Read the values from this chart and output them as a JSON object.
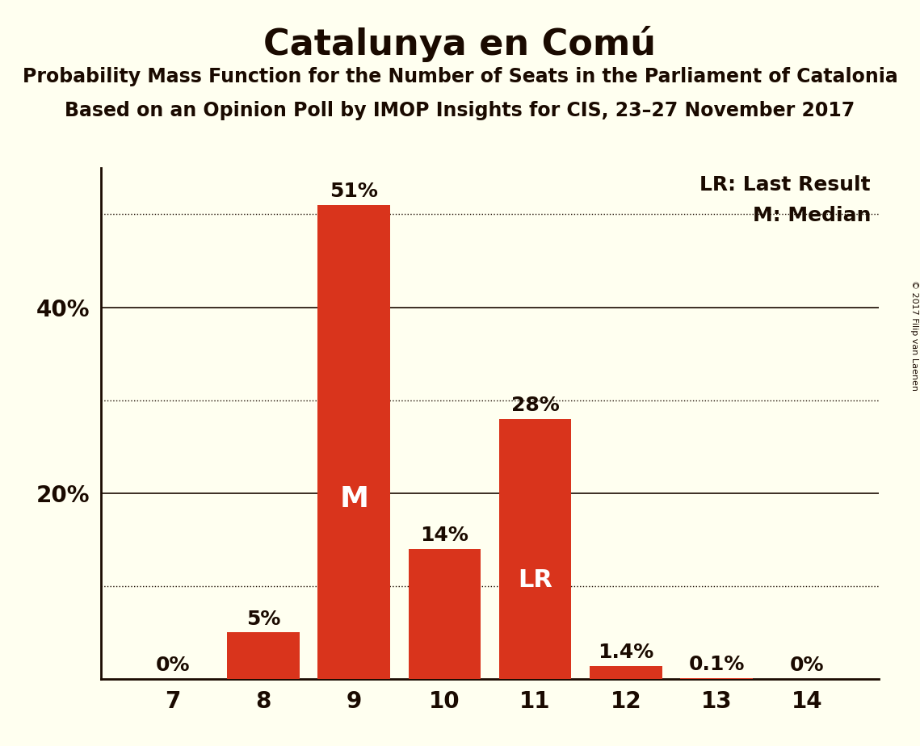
{
  "title": "Catalunya en Comú",
  "subtitle1": "Probability Mass Function for the Number of Seats in the Parliament of Catalonia",
  "subtitle2": "Based on an Opinion Poll by IMOP Insights for CIS, 23–27 November 2017",
  "copyright": "© 2017 Filip van Laenen",
  "seats": [
    7,
    8,
    9,
    10,
    11,
    12,
    13,
    14
  ],
  "probabilities": [
    0.0,
    5.0,
    51.0,
    14.0,
    28.0,
    1.4,
    0.1,
    0.0
  ],
  "bar_color": "#d9341c",
  "background_color": "#fffff0",
  "text_color": "#1a0a00",
  "median_seat": 9,
  "last_result_seat": 11,
  "ylim": [
    0,
    55
  ],
  "yticks_labeled": [
    20,
    40
  ],
  "ytick_labels": [
    "20%",
    "40%"
  ],
  "dotted_yticks": [
    10,
    30,
    50
  ],
  "solid_yticks": [
    20,
    40
  ],
  "legend_lr": "LR: Last Result",
  "legend_m": "M: Median",
  "bar_label_fontsize": 18,
  "title_fontsize": 32,
  "subtitle_fontsize": 17,
  "axis_fontsize": 20,
  "legend_fontsize": 18,
  "copyright_fontsize": 8,
  "median_label_fontsize": 26,
  "lr_label_fontsize": 22
}
